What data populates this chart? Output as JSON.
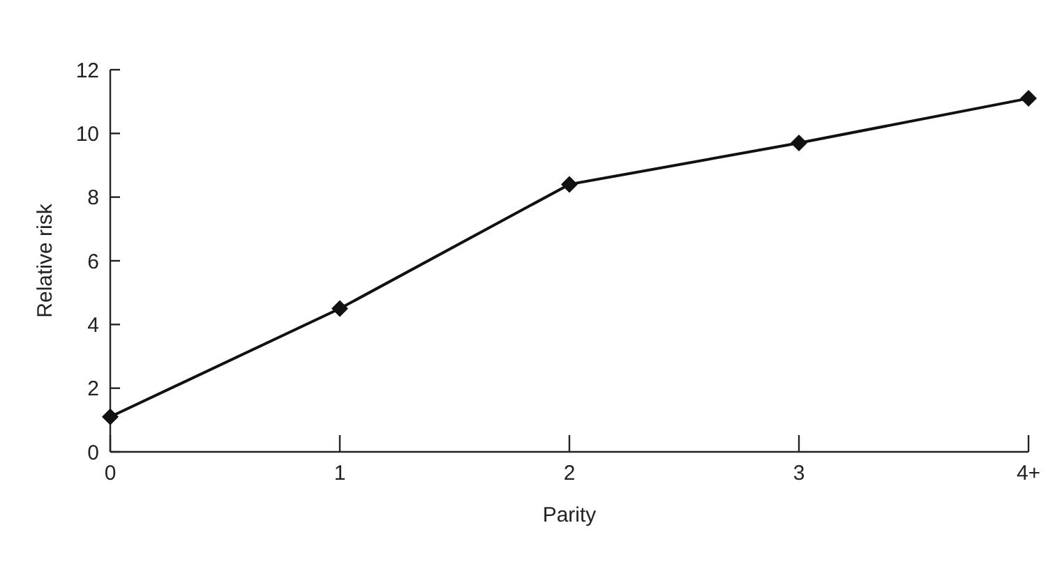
{
  "chart_data": {
    "type": "line",
    "xlabel": "Parity",
    "ylabel": "Relative risk",
    "categories": [
      "0",
      "1",
      "2",
      "3",
      "4+"
    ],
    "series": [
      {
        "color": "#111111",
        "values": [
          1.1,
          4.5,
          8.4,
          9.7,
          11.1
        ]
      }
    ],
    "ylim": [
      0,
      12
    ],
    "yticks": [
      0,
      2,
      4,
      6,
      8,
      10,
      12
    ],
    "grid": false,
    "marker": "diamond",
    "line_style": "solid"
  }
}
